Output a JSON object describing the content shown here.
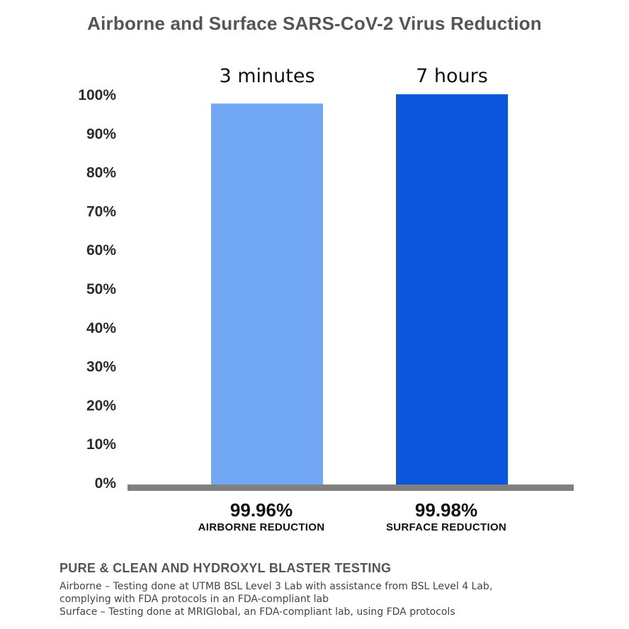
{
  "chart_data": {
    "type": "bar",
    "title": "Airborne and Surface SARS-CoV-2 Virus Reduction",
    "ylim": [
      0,
      100
    ],
    "yticks": [
      "0%",
      "10%",
      "20%",
      "30%",
      "40%",
      "50%",
      "60%",
      "70%",
      "80%",
      "90%",
      "100%"
    ],
    "grid": false,
    "bars": [
      {
        "duration": "3 minutes",
        "value": 99.96,
        "value_label": "99.96%",
        "caption": "AIRBORNE REDUCTION",
        "color": "#72a7f3"
      },
      {
        "duration": "7 hours",
        "value": 99.98,
        "value_label": "99.98%",
        "caption": "SURFACE REDUCTION",
        "color": "#0c55dd"
      }
    ],
    "axis_color": "#808080"
  },
  "footer": {
    "title": "PURE & CLEAN AND HYDROXYL BLASTER TESTING",
    "lines": [
      "Airborne – Testing done at UTMB BSL Level 3 Lab with assistance from BSL Level 4 Lab,",
      "complying with FDA protocols in an FDA-compliant lab",
      "Surface – Testing done at MRIGlobal, an FDA-compliant lab, using FDA protocols"
    ]
  }
}
